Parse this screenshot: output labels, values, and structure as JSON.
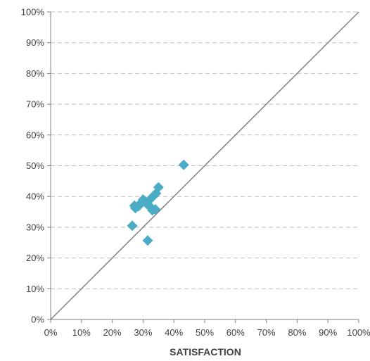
{
  "chart_data": {
    "type": "scatter",
    "title": "",
    "xlabel": "SATISFACTION",
    "ylabel": "",
    "xlim": [
      0,
      100
    ],
    "ylim": [
      0,
      100
    ],
    "x_ticks": [
      "0%",
      "10%",
      "20%",
      "30%",
      "40%",
      "50%",
      "60%",
      "70%",
      "80%",
      "90%",
      "100%"
    ],
    "y_ticks": [
      "0%",
      "10%",
      "20%",
      "30%",
      "40%",
      "50%",
      "60%",
      "70%",
      "80%",
      "90%",
      "100%"
    ],
    "grid": "horizontal-dashed",
    "reference_line": {
      "from": [
        0,
        0
      ],
      "to": [
        100,
        100
      ]
    },
    "marker": "diamond",
    "colors": {
      "marker": "#4bacc6",
      "grid": "#bfbfbf",
      "axis": "#808080",
      "reference_line": "#808080",
      "text": "#404040"
    },
    "series": [
      {
        "points": [
          {
            "x": 43.2,
            "y": 50.3
          },
          {
            "x": 35.0,
            "y": 43.0
          },
          {
            "x": 34.2,
            "y": 41.0
          },
          {
            "x": 33.2,
            "y": 40.0
          },
          {
            "x": 32.0,
            "y": 38.8
          },
          {
            "x": 30.0,
            "y": 39.0
          },
          {
            "x": 29.2,
            "y": 37.8
          },
          {
            "x": 28.5,
            "y": 36.8
          },
          {
            "x": 27.5,
            "y": 36.2
          },
          {
            "x": 27.2,
            "y": 37.0
          },
          {
            "x": 31.3,
            "y": 37.5
          },
          {
            "x": 32.5,
            "y": 36.5
          },
          {
            "x": 33.0,
            "y": 35.5
          },
          {
            "x": 34.0,
            "y": 35.8
          },
          {
            "x": 26.5,
            "y": 30.5
          },
          {
            "x": 31.5,
            "y": 25.7
          }
        ]
      }
    ]
  }
}
